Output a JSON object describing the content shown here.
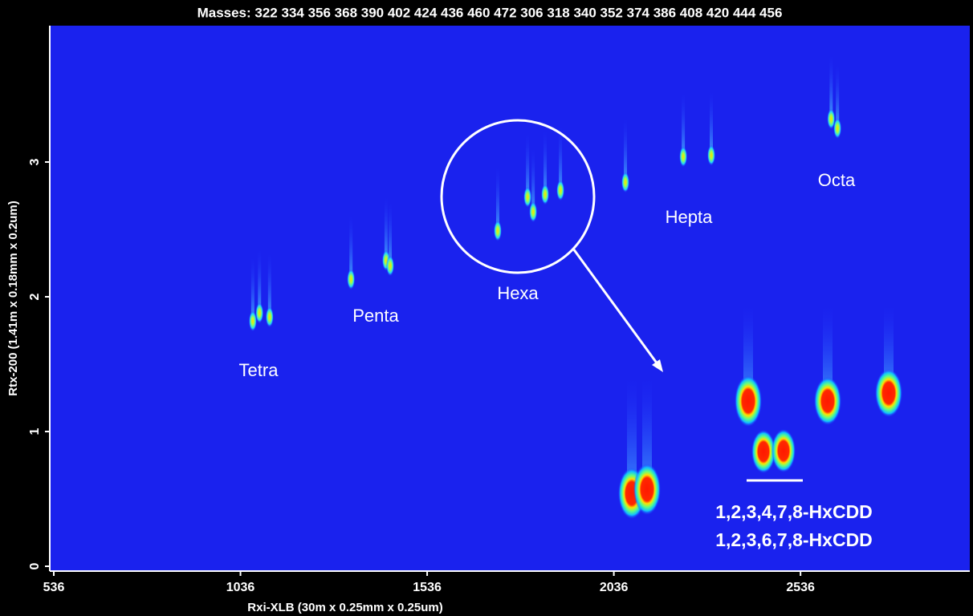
{
  "chart_data": {
    "type": "scatter",
    "title": "Masses:  322 334 356 368 390 402 424 436 460 472 306 318 340 352 374 386 408 420 444 456",
    "x_label": "Rxi-XLB (30m x 0.25mm x 0.25um)",
    "y_label": "Rtx-200 (1.41m x 0.18mm x 0.2um)",
    "x": [
      1069,
      1087,
      1114,
      1332,
      1426,
      1437,
      1725,
      1805,
      1820,
      1852,
      1893,
      2067,
      2222,
      2297,
      2618,
      2635
    ],
    "values": [
      1.82,
      1.88,
      1.85,
      2.13,
      2.27,
      2.23,
      2.49,
      2.74,
      2.63,
      2.76,
      2.79,
      2.85,
      3.04,
      3.05,
      3.32,
      3.25
    ],
    "xlim": [
      536,
      2970
    ],
    "ylim": [
      0,
      4
    ],
    "xticks": [
      536,
      1036,
      1536,
      2036,
      2536
    ],
    "yticks": [
      0,
      1,
      2,
      3
    ],
    "annotations": [
      "Tetra",
      "Penta",
      "Hexa",
      "Hepta",
      "Octa",
      "1,2,3,4,7,8-HxCDD",
      "1,2,3,6,7,8-HxCDD"
    ]
  }
}
